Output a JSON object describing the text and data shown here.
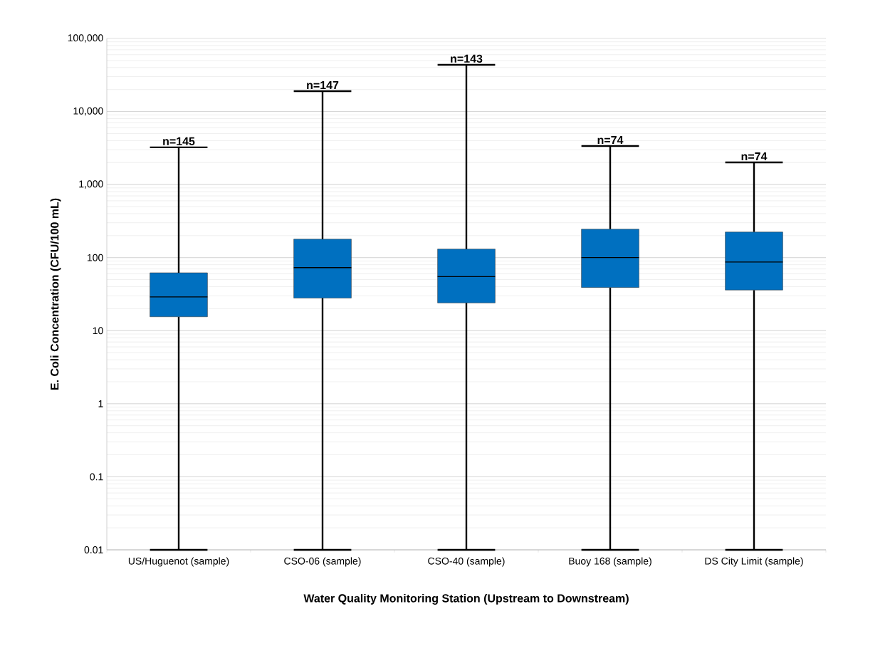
{
  "chart_data": {
    "type": "box",
    "xlabel": "Water Quality Monitoring Station (Upstream to Downstream)",
    "ylabel": "E. Coli Concentration (CFU/100 mL)",
    "categories": [
      "US/Huguenot (sample)",
      "CSO-06 (sample)",
      "CSO-40 (sample)",
      "Buoy 168 (sample)",
      "DS City Limit (sample)"
    ],
    "color": "#0070c0",
    "boxes": [
      {
        "low": 0.01,
        "q1": 15.5,
        "median": 29,
        "q3": 62,
        "high": 3230
      },
      {
        "low": 0.01,
        "q1": 28,
        "median": 73,
        "q3": 179,
        "high": 19000
      },
      {
        "low": 0.01,
        "q1": 24,
        "median": 55,
        "q3": 131,
        "high": 43600
      },
      {
        "low": 0.01,
        "q1": 39,
        "median": 100,
        "q3": 245,
        "high": 3370
      },
      {
        "low": 0.01,
        "q1": 36,
        "median": 87,
        "q3": 224,
        "high": 2010
      }
    ],
    "annotations": [
      {
        "text": "n=145",
        "x": "US/Huguenot (sample)",
        "y": 3230
      },
      {
        "text": "n=147",
        "x": "CSO-06 (sample)",
        "y": 19000
      },
      {
        "text": "n=143",
        "x": "CSO-40 (sample)",
        "y": 43600
      },
      {
        "text": "n=74",
        "x": "Buoy 168 (sample)",
        "y": 3370
      },
      {
        "text": "n=74",
        "x": "DS City Limit (sample)",
        "y": 2010
      }
    ],
    "log": "y",
    "ylim": [
      0.01,
      100000
    ],
    "yticks": [
      {
        "value": 0.01,
        "label": "0.01"
      },
      {
        "value": 0.1,
        "label": "0.1"
      },
      {
        "value": 1,
        "label": "1"
      },
      {
        "value": 10,
        "label": "10"
      },
      {
        "value": 100,
        "label": "100"
      },
      {
        "value": 1000,
        "label": "1,000"
      },
      {
        "value": 10000,
        "label": "10,000"
      },
      {
        "value": 100000,
        "label": "100,000"
      }
    ],
    "grid": "y"
  }
}
